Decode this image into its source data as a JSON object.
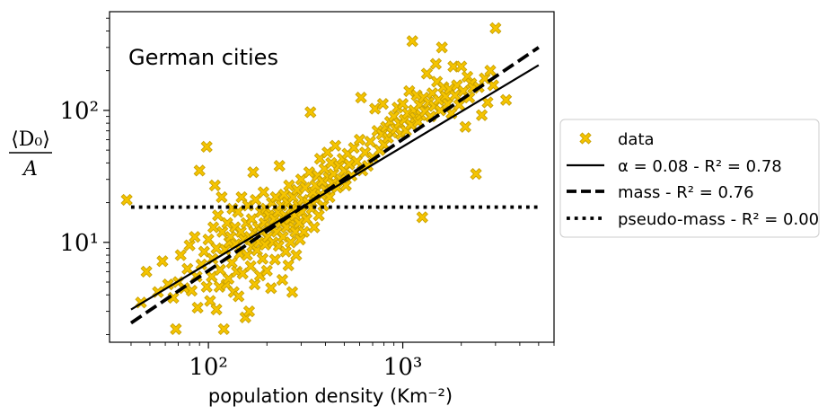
{
  "chart_data": {
    "type": "scatter",
    "title": "German cities",
    "xlabel": "population density (Km⁻²)",
    "ylabel_numerator": "⟨D₀⟩",
    "ylabel_denominator": "A",
    "xscale": "log",
    "yscale": "log",
    "xlim": [
      31,
      6000
    ],
    "ylim": [
      1.75,
      560
    ],
    "x_major_ticks": [
      {
        "value": 100,
        "label": "10²"
      },
      {
        "value": 1000,
        "label": "10³"
      }
    ],
    "y_major_ticks": [
      {
        "value": 10,
        "label": "10¹"
      },
      {
        "value": 100,
        "label": "10²"
      }
    ],
    "legend_position": "outside-right",
    "series": [
      {
        "name": "data",
        "kind": "points",
        "marker": "X",
        "color": "#f5c400",
        "edge_color": "#c8a000",
        "points": [
          [
            38,
            21
          ],
          [
            45,
            3.5
          ],
          [
            48,
            6
          ],
          [
            55,
            4.2
          ],
          [
            58,
            7.2
          ],
          [
            62,
            4.8
          ],
          [
            66,
            3.8
          ],
          [
            68,
            2.2
          ],
          [
            70,
            5.0
          ],
          [
            72,
            8.0
          ],
          [
            75,
            4.5
          ],
          [
            78,
            6.3
          ],
          [
            80,
            9.5
          ],
          [
            82,
            4.3
          ],
          [
            85,
            11
          ],
          [
            87,
            5.5
          ],
          [
            88,
            3.2
          ],
          [
            90,
            35
          ],
          [
            92,
            6.8
          ],
          [
            95,
            8.5
          ],
          [
            98,
            4.6
          ],
          [
            98,
            53
          ],
          [
            100,
            10.5
          ],
          [
            102,
            3.6
          ],
          [
            104,
            5.5
          ],
          [
            105,
            7.5
          ],
          [
            106,
            13
          ],
          [
            108,
            27
          ],
          [
            110,
            3.1
          ],
          [
            110,
            9.0
          ],
          [
            112,
            16
          ],
          [
            114,
            4.6
          ],
          [
            115,
            6.2
          ],
          [
            117,
            22
          ],
          [
            118,
            12
          ],
          [
            120,
            2.2
          ],
          [
            122,
            8.8
          ],
          [
            124,
            4.8
          ],
          [
            125,
            14
          ],
          [
            127,
            5.3
          ],
          [
            128,
            10
          ],
          [
            130,
            11
          ],
          [
            132,
            7.0
          ],
          [
            133,
            18
          ],
          [
            135,
            4.2
          ],
          [
            137,
            13
          ],
          [
            138,
            9.7
          ],
          [
            140,
            6.0
          ],
          [
            142,
            17
          ],
          [
            143,
            3.9
          ],
          [
            145,
            8.2
          ],
          [
            147,
            12
          ],
          [
            148,
            22
          ],
          [
            150,
            5.8
          ],
          [
            152,
            10.5
          ],
          [
            155,
            2.7
          ],
          [
            157,
            14
          ],
          [
            158,
            8.0
          ],
          [
            160,
            19
          ],
          [
            162,
            3.0
          ],
          [
            163,
            11
          ],
          [
            165,
            6.6
          ],
          [
            167,
            15
          ],
          [
            168,
            9.3
          ],
          [
            170,
            34
          ],
          [
            172,
            12
          ],
          [
            173,
            4.8
          ],
          [
            175,
            21
          ],
          [
            178,
            8.7
          ],
          [
            180,
            13
          ],
          [
            182,
            10
          ],
          [
            184,
            5.6
          ],
          [
            186,
            17
          ],
          [
            188,
            12
          ],
          [
            190,
            7.5
          ],
          [
            192,
            24
          ],
          [
            194,
            14
          ],
          [
            196,
            9.6
          ],
          [
            198,
            18
          ],
          [
            200,
            6.1
          ],
          [
            202,
            11
          ],
          [
            205,
            16
          ],
          [
            208,
            13
          ],
          [
            210,
            4.5
          ],
          [
            212,
            20
          ],
          [
            215,
            10
          ],
          [
            218,
            15
          ],
          [
            220,
            7.4
          ],
          [
            222,
            22
          ],
          [
            225,
            12
          ],
          [
            228,
            17
          ],
          [
            230,
            9.4
          ],
          [
            232,
            38
          ],
          [
            235,
            14
          ],
          [
            238,
            19
          ],
          [
            240,
            5.2
          ],
          [
            242,
            11
          ],
          [
            245,
            23
          ],
          [
            248,
            16
          ],
          [
            250,
            8.5
          ],
          [
            252,
            13
          ],
          [
            255,
            20
          ],
          [
            258,
            6.7
          ],
          [
            260,
            27
          ],
          [
            262,
            15
          ],
          [
            265,
            10
          ],
          [
            268,
            18
          ],
          [
            270,
            4.2
          ],
          [
            272,
            22
          ],
          [
            275,
            13
          ],
          [
            278,
            16
          ],
          [
            280,
            12
          ],
          [
            283,
            8.0
          ],
          [
            286,
            25
          ],
          [
            290,
            19
          ],
          [
            293,
            14
          ],
          [
            296,
            10.5
          ],
          [
            300,
            30
          ],
          [
            303,
            17
          ],
          [
            306,
            21
          ],
          [
            310,
            12
          ],
          [
            315,
            26
          ],
          [
            320,
            15
          ],
          [
            325,
            20
          ],
          [
            330,
            34
          ],
          [
            335,
            97
          ],
          [
            340,
            18
          ],
          [
            345,
            24
          ],
          [
            350,
            13
          ],
          [
            355,
            27
          ],
          [
            360,
            21
          ],
          [
            365,
            32
          ],
          [
            370,
            16
          ],
          [
            375,
            43
          ],
          [
            380,
            23
          ],
          [
            385,
            29
          ],
          [
            390,
            19
          ],
          [
            395,
            36
          ],
          [
            400,
            25
          ],
          [
            410,
            48
          ],
          [
            415,
            31
          ],
          [
            420,
            22
          ],
          [
            428,
            40
          ],
          [
            435,
            28
          ],
          [
            440,
            33
          ],
          [
            450,
            54
          ],
          [
            460,
            26
          ],
          [
            470,
            38
          ],
          [
            480,
            30
          ],
          [
            490,
            43
          ],
          [
            500,
            35
          ],
          [
            510,
            27
          ],
          [
            520,
            47
          ],
          [
            530,
            39
          ],
          [
            545,
            32
          ],
          [
            560,
            52
          ],
          [
            580,
            41
          ],
          [
            600,
            60
          ],
          [
            610,
            125
          ],
          [
            620,
            35
          ],
          [
            640,
            48
          ],
          [
            660,
            38
          ],
          [
            680,
            58
          ],
          [
            700,
            44
          ],
          [
            720,
            103
          ],
          [
            740,
            70
          ],
          [
            760,
            50
          ],
          [
            780,
            66
          ],
          [
            790,
            112
          ],
          [
            800,
            55
          ],
          [
            820,
            75
          ],
          [
            840,
            62
          ],
          [
            860,
            82
          ],
          [
            880,
            68
          ],
          [
            900,
            90
          ],
          [
            920,
            72
          ],
          [
            940,
            105
          ],
          [
            960,
            80
          ],
          [
            980,
            66
          ],
          [
            1000,
            112
          ],
          [
            1020,
            85
          ],
          [
            1040,
            70
          ],
          [
            1060,
            95
          ],
          [
            1080,
            140
          ],
          [
            1100,
            78
          ],
          [
            1120,
            335
          ],
          [
            1140,
            100
          ],
          [
            1160,
            88
          ],
          [
            1180,
            130
          ],
          [
            1200,
            82
          ],
          [
            1220,
            110
          ],
          [
            1240,
            92
          ],
          [
            1260,
            15.5
          ],
          [
            1280,
            125
          ],
          [
            1300,
            98
          ],
          [
            1330,
            190
          ],
          [
            1360,
            115
          ],
          [
            1390,
            90
          ],
          [
            1420,
            135
          ],
          [
            1450,
            108
          ],
          [
            1480,
            225
          ],
          [
            1500,
            165
          ],
          [
            1530,
            120
          ],
          [
            1560,
            100
          ],
          [
            1590,
            300
          ],
          [
            1620,
            150
          ],
          [
            1660,
            128
          ],
          [
            1700,
            112
          ],
          [
            1740,
            145
          ],
          [
            1780,
            95
          ],
          [
            1820,
            215
          ],
          [
            1860,
            130
          ],
          [
            1900,
            155
          ],
          [
            1950,
            110
          ],
          [
            2000,
            215
          ],
          [
            2050,
            140
          ],
          [
            2100,
            75
          ],
          [
            2150,
            180
          ],
          [
            2200,
            125
          ],
          [
            2250,
            160
          ],
          [
            2300,
            148
          ],
          [
            2380,
            33
          ],
          [
            2460,
            150
          ],
          [
            2550,
            92
          ],
          [
            2640,
            175
          ],
          [
            2730,
            115
          ],
          [
            2820,
            200
          ],
          [
            2920,
            155
          ],
          [
            3000,
            420
          ],
          [
            3400,
            120
          ]
        ]
      },
      {
        "name": "α = 0.08 - R² = 0.78",
        "kind": "line",
        "style": "solid",
        "points": [
          [
            40,
            3.1
          ],
          [
            5000,
            220
          ]
        ]
      },
      {
        "name": "mass - R² = 0.76",
        "kind": "line",
        "style": "dashed",
        "points": [
          [
            40,
            2.45
          ],
          [
            5000,
            300
          ]
        ]
      },
      {
        "name": "pseudo-mass - R² = 0.00",
        "kind": "line",
        "style": "dotted",
        "points": [
          [
            40,
            18.5
          ],
          [
            5000,
            18.5
          ]
        ]
      }
    ]
  }
}
